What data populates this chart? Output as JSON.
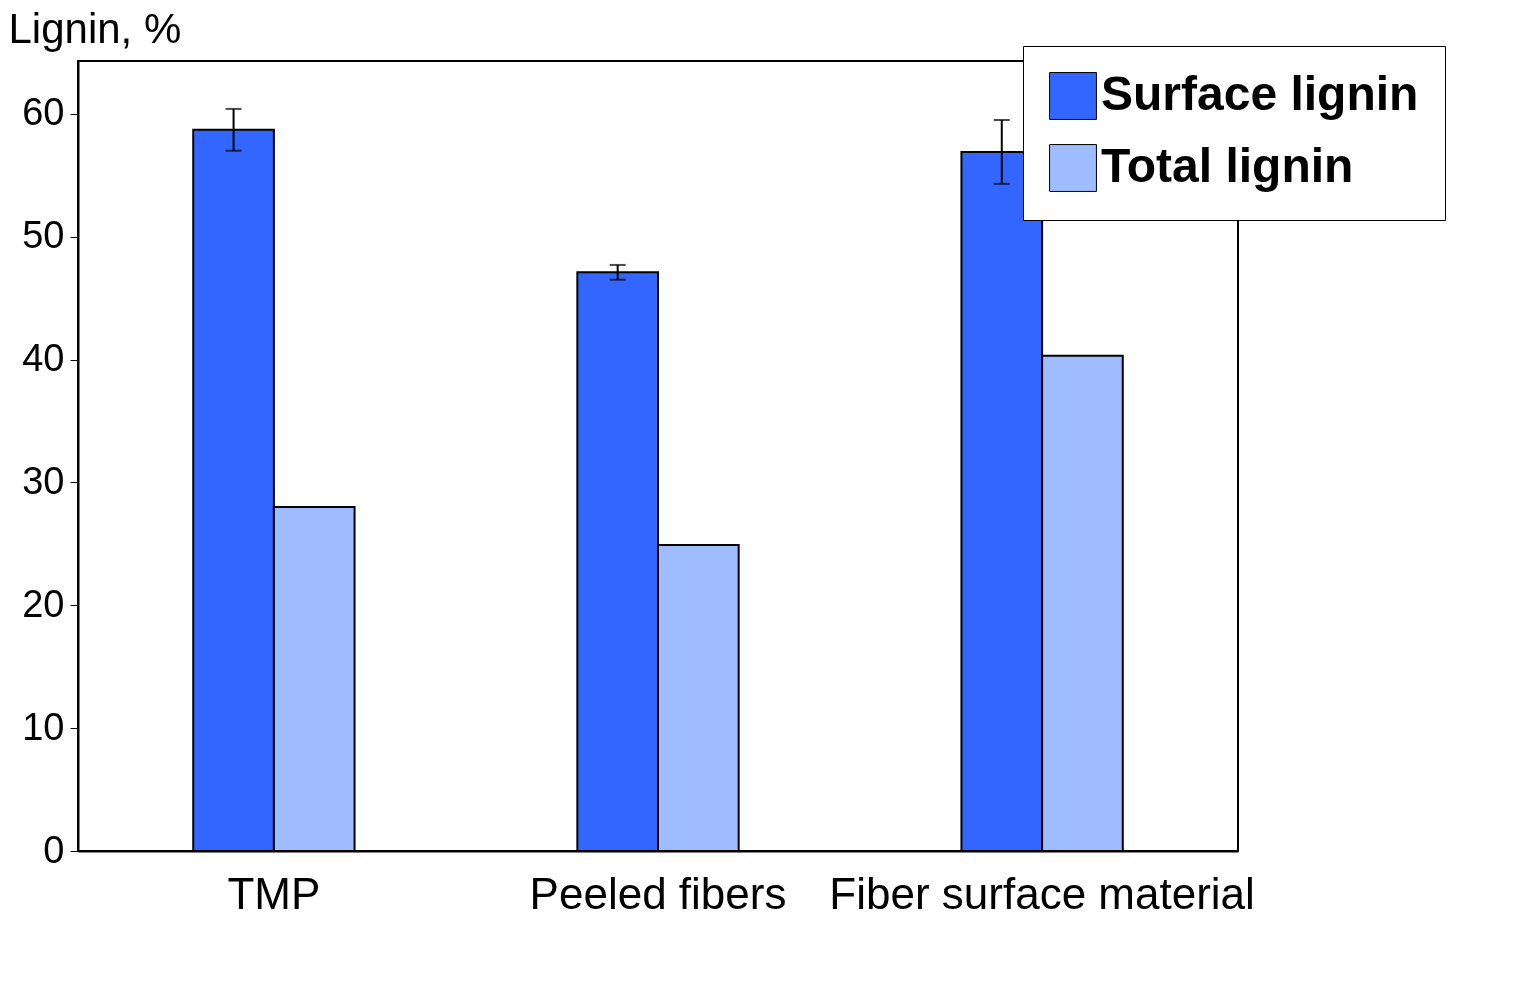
{
  "chart_data": {
    "type": "bar",
    "ylabel": "Lignin, %",
    "categories": [
      "TMP",
      "Peeled fibers",
      "Fiber surface material"
    ],
    "series": [
      {
        "name": "Surface lignin",
        "color": "#3366ff",
        "values": [
          58.7,
          47.1,
          56.9
        ],
        "errors": [
          1.7,
          0.6,
          2.6
        ]
      },
      {
        "name": "Total lignin",
        "color": "#9fbcff",
        "values": [
          28,
          24.9,
          40.3
        ]
      }
    ],
    "ylim": [
      0,
      64.3
    ],
    "yticks": [
      0,
      10,
      20,
      30,
      40,
      50,
      60
    ],
    "grid": false,
    "legend": "top right"
  }
}
